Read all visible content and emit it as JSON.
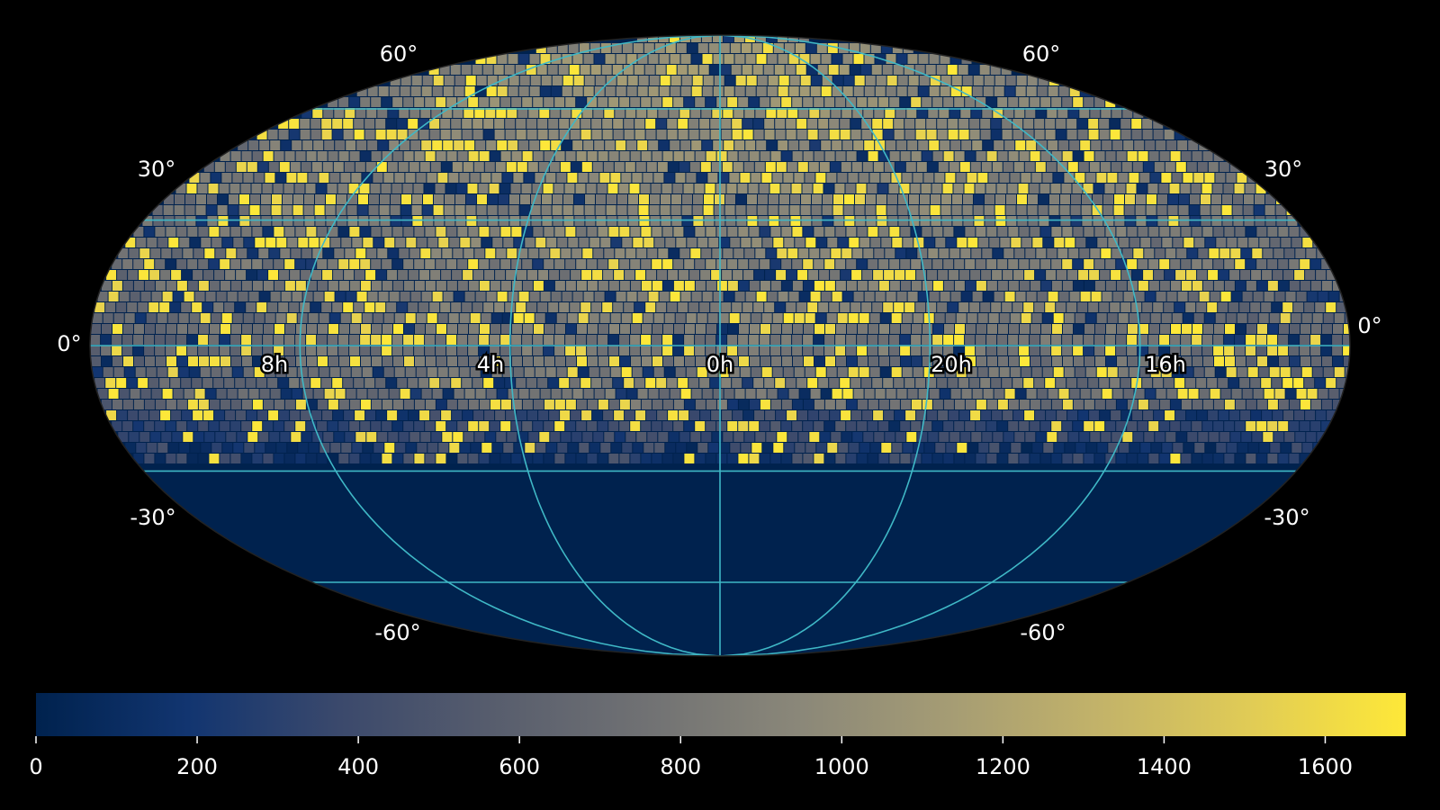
{
  "map": {
    "projection": "mollweide",
    "colormap": "cividis",
    "background": "#000000",
    "graticule_color": "#3fb8c6",
    "southern_fill": "#00224e",
    "dec_labels": [
      "60°",
      "30°",
      "0°",
      "-30°",
      "-60°"
    ],
    "ra_labels": [
      "8h",
      "4h",
      "0h",
      "20h",
      "16h"
    ],
    "dec_lines": [
      60,
      30,
      0,
      -30,
      -60
    ],
    "ra_lines_hours": [
      8,
      4,
      0,
      20,
      16
    ],
    "data_coverage_min_dec": -25
  },
  "colorbar": {
    "min": 0,
    "max": 1700,
    "ticks": [
      "0",
      "200",
      "400",
      "600",
      "800",
      "1000",
      "1200",
      "1400",
      "1600"
    ],
    "tick_values": [
      0,
      200,
      400,
      600,
      800,
      1000,
      1200,
      1400,
      1600
    ],
    "stops": [
      "#00224e",
      "#123570",
      "#3b496c",
      "#575d6d",
      "#707173",
      "#8a8779",
      "#a59c74",
      "#c3b369",
      "#e1cc55",
      "#fee838"
    ]
  },
  "chart_data": {
    "type": "heatmap",
    "title": "",
    "xlabel": "",
    "ylabel": "",
    "color_range": [
      0,
      1700
    ],
    "x_ticks": [
      "8h",
      "4h",
      "0h",
      "20h",
      "16h"
    ],
    "y_ticks": [
      "60°",
      "30°",
      "0°",
      "-30°",
      "-60°"
    ]
  }
}
